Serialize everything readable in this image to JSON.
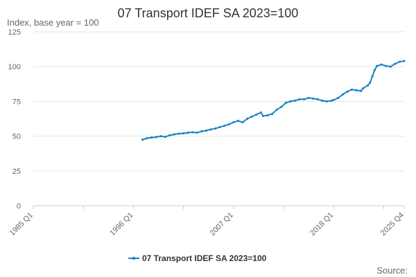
{
  "chart_data": {
    "type": "line",
    "title": "07 Transport IDEF SA 2023=100",
    "ylabel": "Index, base year = 100",
    "xlabel": "",
    "ylim": [
      0,
      125
    ],
    "yticks": [
      0,
      25,
      50,
      75,
      100,
      125
    ],
    "x_ticks": [
      "1985 Q1",
      "1996 Q1",
      "2007 Q1",
      "2018 Q1",
      "2025 Q4"
    ],
    "grid": "horizontal",
    "legend_position": "bottom-center",
    "source_label": "Source:",
    "series_color": "#1c84c6",
    "series": [
      {
        "name": "07 Transport IDEF SA 2023=100",
        "points": [
          [
            "1997 Q1",
            47.5
          ],
          [
            "1997 Q3",
            48.5
          ],
          [
            "1998 Q1",
            49.0
          ],
          [
            "1998 Q3",
            49.3
          ],
          [
            "1999 Q1",
            50.0
          ],
          [
            "1999 Q3",
            49.5
          ],
          [
            "2000 Q1",
            50.6
          ],
          [
            "2000 Q3",
            51.3
          ],
          [
            "2001 Q1",
            51.8
          ],
          [
            "2001 Q3",
            52.0
          ],
          [
            "2002 Q1",
            52.5
          ],
          [
            "2002 Q3",
            52.8
          ],
          [
            "2003 Q1",
            52.5
          ],
          [
            "2003 Q3",
            53.5
          ],
          [
            "2004 Q1",
            54.0
          ],
          [
            "2004 Q3",
            54.8
          ],
          [
            "2005 Q1",
            55.5
          ],
          [
            "2005 Q3",
            56.5
          ],
          [
            "2006 Q1",
            57.5
          ],
          [
            "2006 Q3",
            58.5
          ],
          [
            "2007 Q1",
            60.0
          ],
          [
            "2007 Q3",
            61.0
          ],
          [
            "2008 Q1",
            60.0
          ],
          [
            "2008 Q3",
            62.5
          ],
          [
            "2009 Q1",
            64.0
          ],
          [
            "2009 Q3",
            65.5
          ],
          [
            "2010 Q1",
            67.0
          ],
          [
            "2010 Q2",
            64.5
          ],
          [
            "2010 Q4",
            65.0
          ],
          [
            "2011 Q2",
            66.0
          ],
          [
            "2011 Q4",
            69.0
          ],
          [
            "2012 Q2",
            71.0
          ],
          [
            "2012 Q4",
            74.0
          ],
          [
            "2013 Q2",
            75.0
          ],
          [
            "2013 Q4",
            75.5
          ],
          [
            "2014 Q2",
            76.5
          ],
          [
            "2014 Q4",
            76.5
          ],
          [
            "2015 Q2",
            77.5
          ],
          [
            "2015 Q4",
            77.0
          ],
          [
            "2016 Q2",
            76.5
          ],
          [
            "2016 Q4",
            75.5
          ],
          [
            "2017 Q2",
            75.0
          ],
          [
            "2017 Q4",
            75.5
          ],
          [
            "2018 Q1",
            76.0
          ],
          [
            "2018 Q3",
            77.5
          ],
          [
            "2019 Q1",
            80.0
          ],
          [
            "2019 Q3",
            82.0
          ],
          [
            "2020 Q1",
            83.5
          ],
          [
            "2020 Q3",
            83.0
          ],
          [
            "2021 Q1",
            82.5
          ],
          [
            "2021 Q2",
            84.5
          ],
          [
            "2021 Q4",
            86.5
          ],
          [
            "2022 Q1",
            88.5
          ],
          [
            "2022 Q2",
            93.0
          ],
          [
            "2022 Q3",
            97.5
          ],
          [
            "2022 Q4",
            100.5
          ],
          [
            "2023 Q2",
            101.5
          ],
          [
            "2023 Q4",
            100.5
          ],
          [
            "2024 Q2",
            100.0
          ],
          [
            "2024 Q4",
            102.0
          ],
          [
            "2025 Q2",
            103.5
          ],
          [
            "2025 Q4",
            104.0
          ]
        ]
      }
    ]
  }
}
